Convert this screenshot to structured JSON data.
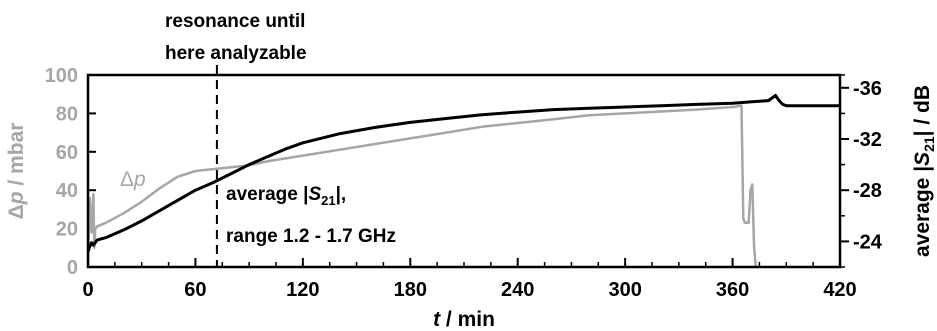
{
  "chart_data": {
    "type": "line",
    "xlabel": {
      "italic": "t",
      "rest": " / min"
    },
    "ylabel_left": {
      "prefix": "Δ",
      "italic": "p",
      "rest": " / mbar"
    },
    "ylabel_right": {
      "text1": "average |",
      "italic": "S",
      "sub": "21",
      "text2": "| / dB"
    },
    "x_ticks": [
      0,
      60,
      120,
      180,
      240,
      300,
      360,
      420
    ],
    "y_left_ticks": [
      0,
      20,
      40,
      60,
      80,
      100
    ],
    "y_right_ticks": [
      -36,
      -32,
      -28,
      -24
    ],
    "xlim": [
      0,
      420
    ],
    "ylim_left": [
      0,
      100
    ],
    "ylim_right": [
      -22,
      -37
    ],
    "colors": {
      "pressure": "#a6a6a6",
      "s21": "#000000"
    },
    "annotations": {
      "resonance_line1": "resonance until",
      "resonance_line2": "here analyzable",
      "resonance_x": 72,
      "avg_line1_prefix": "average |",
      "avg_italic": "S",
      "avg_sub": "21",
      "avg_line1_suffix": "|,",
      "avg_line2": "range 1.2 - 1.7 GHz",
      "dp_prefix": "Δ",
      "dp_italic": "p"
    },
    "series": [
      {
        "key": "pressure",
        "axis": "left",
        "x": [
          0,
          1,
          2,
          3,
          3.5,
          4,
          5,
          6,
          10,
          20,
          30,
          40,
          50,
          60,
          70,
          80,
          90,
          100,
          120,
          140,
          160,
          180,
          200,
          220,
          240,
          260,
          280,
          300,
          320,
          340,
          355,
          362,
          364,
          365,
          366,
          367,
          368,
          369,
          370,
          371,
          372,
          373
        ],
        "y": [
          0,
          36,
          18,
          38,
          10,
          20,
          21,
          21.5,
          23,
          28,
          34,
          41,
          47,
          50,
          51,
          52,
          53,
          55,
          58,
          61,
          64,
          67,
          70,
          73,
          75,
          77,
          79,
          80,
          81,
          82,
          83,
          83.5,
          84,
          84,
          25,
          23,
          23,
          23,
          40,
          43,
          10,
          0
        ]
      },
      {
        "key": "s21",
        "axis": "right",
        "x": [
          0,
          1,
          2,
          3,
          5,
          10,
          20,
          30,
          40,
          50,
          60,
          70,
          80,
          90,
          100,
          110,
          120,
          140,
          160,
          180,
          200,
          220,
          240,
          260,
          280,
          300,
          320,
          340,
          360,
          370,
          380,
          382,
          384,
          386,
          388,
          390,
          400,
          410,
          420
        ],
        "y": [
          -23.2,
          -23.6,
          -23.9,
          -23.7,
          -24.1,
          -24.3,
          -24.9,
          -25.6,
          -26.4,
          -27.2,
          -28.0,
          -28.6,
          -29.3,
          -30.0,
          -30.6,
          -31.2,
          -31.7,
          -32.4,
          -32.9,
          -33.3,
          -33.6,
          -33.9,
          -34.1,
          -34.3,
          -34.4,
          -34.5,
          -34.6,
          -34.7,
          -34.8,
          -34.9,
          -35.0,
          -35.2,
          -35.4,
          -35.0,
          -34.7,
          -34.6,
          -34.6,
          -34.6,
          -34.6
        ]
      }
    ]
  }
}
